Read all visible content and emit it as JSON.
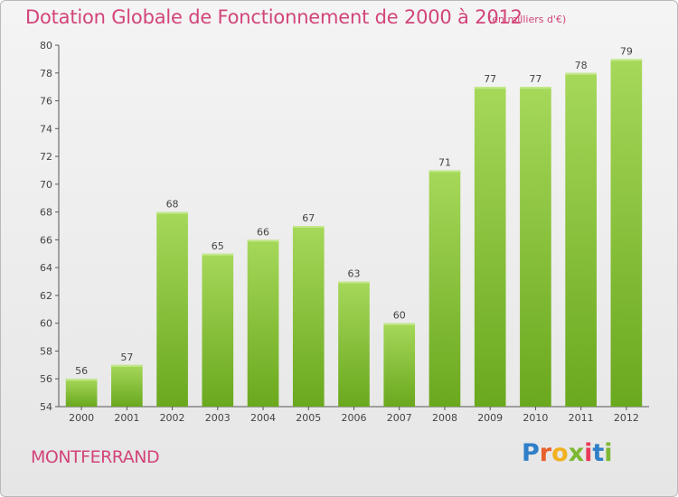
{
  "header": {
    "title": "Dotation Globale de Fonctionnement de 2000 à 2012",
    "subtitle": "(en milliers d'€)"
  },
  "footer": {
    "commune": "MONTFERRAND",
    "logo": {
      "text": "Proxiti",
      "letters": [
        "P",
        "r",
        "o",
        "x",
        "i",
        "t",
        "i"
      ],
      "colors": [
        "#2f7fc8",
        "#e8602c",
        "#f0b020",
        "#7cb832",
        "#e83a5a",
        "#2f7fc8",
        "#7cb832"
      ]
    }
  },
  "colors": {
    "title": "#d2457a",
    "bar_light": "#a6d85a",
    "bar_dark": "#6aa81e",
    "grid": "#c8c8c8",
    "axis": "#555555"
  },
  "chart_data": {
    "type": "bar",
    "title": "Dotation Globale de Fonctionnement de 2000 à 2012",
    "subtitle": "(en milliers d'€)",
    "xlabel": "",
    "ylabel": "",
    "categories": [
      "2000",
      "2001",
      "2002",
      "2003",
      "2004",
      "2005",
      "2006",
      "2007",
      "2008",
      "2009",
      "2010",
      "2011",
      "2012"
    ],
    "values": [
      56,
      57,
      68,
      65,
      66,
      67,
      63,
      60,
      71,
      77,
      77,
      78,
      79
    ],
    "ylim": [
      54,
      80
    ],
    "yticks": [
      54,
      56,
      58,
      60,
      62,
      64,
      66,
      68,
      70,
      72,
      74,
      76,
      78,
      80
    ],
    "grid": false,
    "legend": "none"
  }
}
